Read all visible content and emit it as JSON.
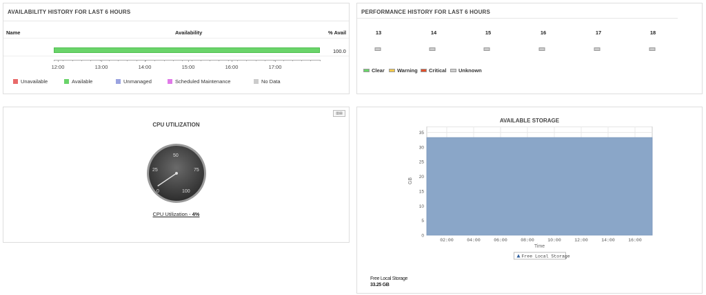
{
  "availability": {
    "title": "AVAILABILITY HISTORY FOR LAST 6 HOURS",
    "col_name": "Name",
    "col_availability": "Availability",
    "col_pct": "% Avail",
    "availability_fraction": 1.0,
    "pct_value": "100.0",
    "time_ticks": [
      "12:00",
      "13:00",
      "14:00",
      "15:00",
      "16:00",
      "17:00"
    ],
    "legend": [
      {
        "label": "Unavailable",
        "color": "#e86a6a"
      },
      {
        "label": "Available",
        "color": "#6ad46a"
      },
      {
        "label": "Unmanaged",
        "color": "#9aa3e0"
      },
      {
        "label": "Scheduled Maintenance",
        "color": "#e07ae8"
      },
      {
        "label": "No Data",
        "color": "#cccccc"
      }
    ],
    "bar_color": "#6ad46a"
  },
  "performance": {
    "title": "PERFORMANCE HISTORY FOR LAST 6 HOURS",
    "days": [
      "13",
      "14",
      "15",
      "16",
      "17",
      "18"
    ],
    "legend": [
      {
        "label": "Clear",
        "color": "#6ad46a"
      },
      {
        "label": "Warning",
        "color": "#f2c94c"
      },
      {
        "label": "Critical",
        "color": "#e0502c"
      },
      {
        "label": "Unknown",
        "color": "#cccccc"
      }
    ]
  },
  "cpu": {
    "title": "CPU UTILIZATION",
    "gauge_labels": [
      "0",
      "25",
      "50",
      "75",
      "100"
    ],
    "value_pct": 4,
    "caption_prefix": "CPU Utilization - ",
    "caption_value": "4%"
  },
  "storage": {
    "title": "AVAILABLE STORAGE",
    "footer_label": "Free Local Storage",
    "footer_value": "33.25 GB",
    "chart_data": {
      "type": "area",
      "title": "AVAILABLE STORAGE",
      "xlabel": "Time",
      "ylabel": "GB",
      "x_ticks": [
        "02:00",
        "04:00",
        "06:00",
        "08:00",
        "10:00",
        "12:00",
        "14:00",
        "16:00"
      ],
      "y_ticks": [
        0,
        5,
        10,
        15,
        20,
        25,
        30,
        35
      ],
      "ylim": [
        0,
        37
      ],
      "series": [
        {
          "name": "Free Local Storage",
          "values": [
            33.25,
            33.25,
            33.25,
            33.25,
            33.25,
            33.25,
            33.25,
            33.25,
            33.25
          ]
        }
      ],
      "x": [
        "00:30",
        "02:00",
        "04:00",
        "06:00",
        "08:00",
        "10:00",
        "12:00",
        "14:00",
        "17:30"
      ],
      "legend_position": "bottom-center",
      "color": "#8aa6c8",
      "grid": true
    }
  }
}
